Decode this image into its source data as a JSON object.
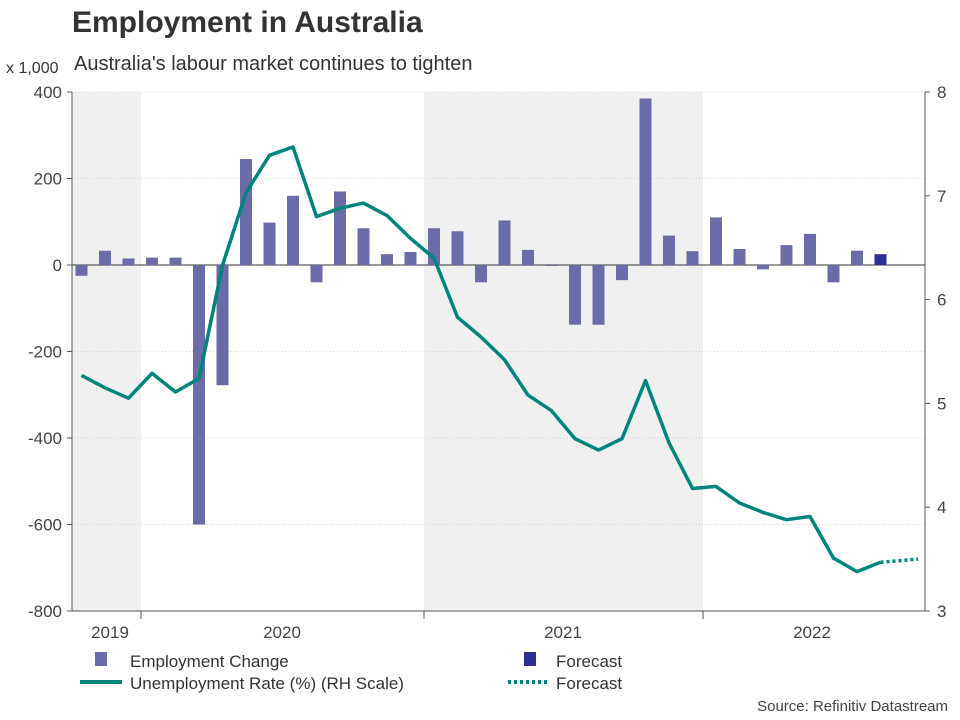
{
  "header": {
    "title": "Employment in Australia",
    "subtitle": "Australia's labour market continues to tighten",
    "y_left_unit": "x 1,000",
    "source": "Source: Refinitiv Datastream"
  },
  "colors": {
    "bar": "#6b6ba8",
    "bar_forecast": "#2e2e96",
    "line": "#00857c",
    "shade": "#f0f0f0",
    "grid": "#cccccc",
    "axis": "#555555"
  },
  "chart_data": {
    "type": "bar+line",
    "title": "Employment in Australia",
    "subtitle": "Australia's labour market continues to tighten",
    "x_tick_labels": [
      "2019",
      "2020",
      "2021",
      "2022"
    ],
    "y_left": {
      "label": "x 1,000",
      "ylim": [
        -800,
        400
      ],
      "ticks": [
        400,
        200,
        0,
        -200,
        -400,
        -600,
        -800
      ]
    },
    "y_right": {
      "label": "Unemployment Rate (%) (RH Scale)",
      "ylim": [
        3,
        8
      ],
      "ticks": [
        8,
        7,
        6,
        5,
        4,
        3
      ]
    },
    "series": [
      {
        "name": "Employment Change",
        "axis": "left",
        "kind": "bar",
        "values": [
          -25,
          33,
          15,
          17,
          17,
          -600,
          -278,
          245,
          98,
          160,
          -40,
          170,
          85,
          25,
          30,
          85,
          78,
          -40,
          103,
          35,
          -2,
          -138,
          -138,
          -35,
          385,
          68,
          32,
          110,
          37,
          -10,
          46,
          72,
          -40,
          33
        ]
      },
      {
        "name": "Forecast",
        "axis": "left",
        "kind": "bar",
        "values": [
          25
        ]
      },
      {
        "name": "Unemployment Rate (%) (RH Scale)",
        "axis": "right",
        "kind": "line",
        "values": [
          5.27,
          5.15,
          5.05,
          5.29,
          5.11,
          5.24,
          6.33,
          7.03,
          7.39,
          7.47,
          6.8,
          6.88,
          6.93,
          6.81,
          6.59,
          6.4,
          5.83,
          5.64,
          5.42,
          5.08,
          4.93,
          4.66,
          4.55,
          4.66,
          5.22,
          4.62,
          4.18,
          4.2,
          4.04,
          3.95,
          3.88,
          3.91,
          3.51,
          3.38,
          3.47
        ]
      },
      {
        "name": "Forecast",
        "axis": "right",
        "kind": "line-dotted",
        "values": [
          3.47,
          3.5
        ]
      }
    ],
    "shaded_years": [
      "2019",
      "2021"
    ],
    "legend": [
      {
        "label": "Employment Change",
        "kind": "bar"
      },
      {
        "label": "Forecast",
        "kind": "bar-forecast"
      },
      {
        "label": "Unemployment Rate (%) (RH Scale)",
        "kind": "line"
      },
      {
        "label": "Forecast",
        "kind": "line-dotted"
      }
    ]
  }
}
